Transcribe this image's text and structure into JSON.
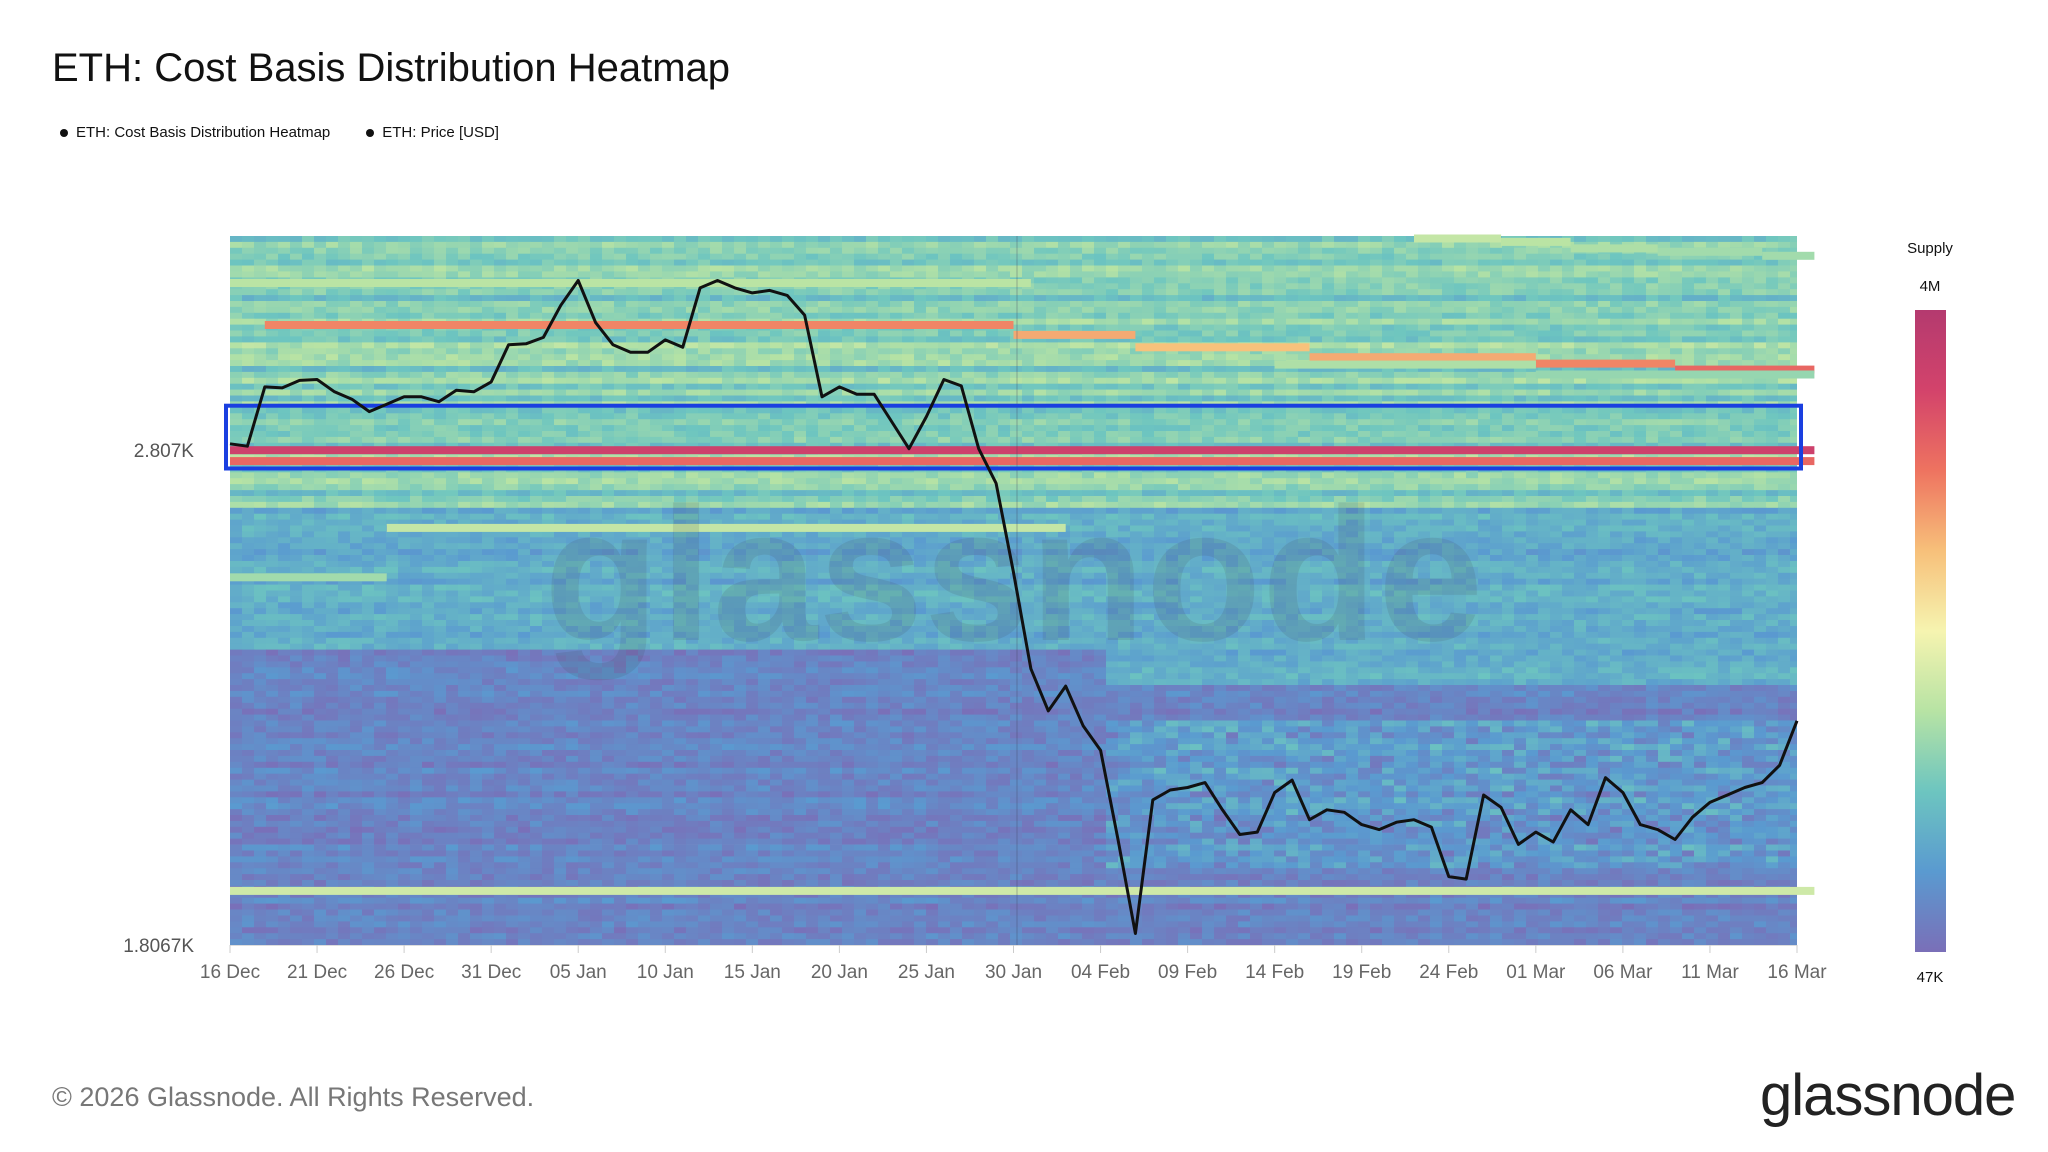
{
  "title": "ETH: Cost Basis Distribution Heatmap",
  "legend": [
    {
      "label": "ETH: Cost Basis Distribution Heatmap"
    },
    {
      "label": "ETH: Price [USD]"
    }
  ],
  "footer": "© 2026 Glassnode. All Rights Reserved.",
  "brand": "glassnode",
  "watermark": "glassnode",
  "colors": {
    "price_line": "#111111",
    "highlight_box": "#1a3fe0",
    "scale": [
      "#7a6fb8",
      "#5a9ad0",
      "#6dc5c0",
      "#b7e3a4",
      "#f6f4b0",
      "#f7c07a",
      "#ee7360",
      "#d3436b",
      "#b43a6f"
    ]
  },
  "chart_data": {
    "type": "heatmap",
    "title": "ETH: Cost Basis Distribution Heatmap",
    "x_tick_labels": [
      "16 Dec",
      "21 Dec",
      "26 Dec",
      "31 Dec",
      "05 Jan",
      "10 Jan",
      "15 Jan",
      "20 Jan",
      "25 Jan",
      "30 Jan",
      "04 Feb",
      "09 Feb",
      "14 Feb",
      "19 Feb",
      "24 Feb",
      "01 Mar",
      "06 Mar",
      "11 Mar",
      "16 Mar"
    ],
    "y_tick_labels": [
      "2.807K",
      "1.8067K"
    ],
    "y_ticks": [
      2807,
      1806.7
    ],
    "ylim": [
      1806.7,
      3240
    ],
    "ylabel": "",
    "xlabel": "",
    "colorbar": {
      "title": "Supply",
      "max_label": "4M",
      "min_label": "47K",
      "max": 4000000,
      "min": 47000
    },
    "highlight_band": {
      "from": 2770,
      "to": 2897
    },
    "bands": [
      {
        "from_day": 0,
        "to_day": 91,
        "price": 2807,
        "level": 0.9
      },
      {
        "from_day": 0,
        "to_day": 91,
        "price": 2785,
        "level": 0.78
      },
      {
        "from_day": 0,
        "to_day": 91,
        "price": 1916,
        "level": 0.42
      },
      {
        "from_day": 2,
        "to_day": 45,
        "price": 3060,
        "level": 0.72
      },
      {
        "from_day": 45,
        "to_day": 52,
        "price": 3040,
        "level": 0.66
      },
      {
        "from_day": 52,
        "to_day": 62,
        "price": 3015,
        "level": 0.62
      },
      {
        "from_day": 62,
        "to_day": 75,
        "price": 2995,
        "level": 0.66
      },
      {
        "from_day": 75,
        "to_day": 83,
        "price": 2982,
        "level": 0.72
      },
      {
        "from_day": 83,
        "to_day": 91,
        "price": 2970,
        "level": 0.78
      },
      {
        "from_day": 9,
        "to_day": 48,
        "price": 2650,
        "level": 0.4
      },
      {
        "from_day": 0,
        "to_day": 9,
        "price": 2550,
        "level": 0.34
      },
      {
        "from_day": 0,
        "to_day": 46,
        "price": 3145,
        "level": 0.38
      },
      {
        "from_day": 68,
        "to_day": 73,
        "price": 3235,
        "level": 0.4
      },
      {
        "from_day": 73,
        "to_day": 77,
        "price": 3228,
        "level": 0.38
      },
      {
        "from_day": 77,
        "to_day": 82,
        "price": 3215,
        "level": 0.36
      },
      {
        "from_day": 82,
        "to_day": 88,
        "price": 3208,
        "level": 0.34
      },
      {
        "from_day": 88,
        "to_day": 91,
        "price": 3200,
        "level": 0.34
      },
      {
        "from_day": 60,
        "to_day": 75,
        "price": 2980,
        "level": 0.36
      },
      {
        "from_day": 75,
        "to_day": 91,
        "price": 2960,
        "level": 0.32
      }
    ],
    "series": [
      {
        "name": "ETH: Price [USD]",
        "type": "line",
        "values": [
          2820,
          2815,
          2935,
          2933,
          2948,
          2950,
          2925,
          2910,
          2885,
          2900,
          2915,
          2915,
          2905,
          2928,
          2925,
          2945,
          3020,
          3022,
          3035,
          3100,
          3150,
          3065,
          3020,
          3005,
          3005,
          3030,
          3015,
          3135,
          3150,
          3135,
          3125,
          3130,
          3120,
          3080,
          2915,
          2935,
          2920,
          2920,
          2865,
          2810,
          2875,
          2950,
          2937,
          2810,
          2740,
          2560,
          2365,
          2280,
          2330,
          2250,
          2200,
          2020,
          1830,
          2100,
          2120,
          2125,
          2135,
          2080,
          2030,
          2035,
          2115,
          2140,
          2060,
          2080,
          2075,
          2050,
          2040,
          2055,
          2060,
          2045,
          1945,
          1940,
          2110,
          2085,
          2010,
          2035,
          2015,
          2080,
          2050,
          2145,
          2115,
          2050,
          2040,
          2020,
          2065,
          2095,
          2110,
          2125,
          2135,
          2170,
          2260
        ]
      }
    ]
  }
}
